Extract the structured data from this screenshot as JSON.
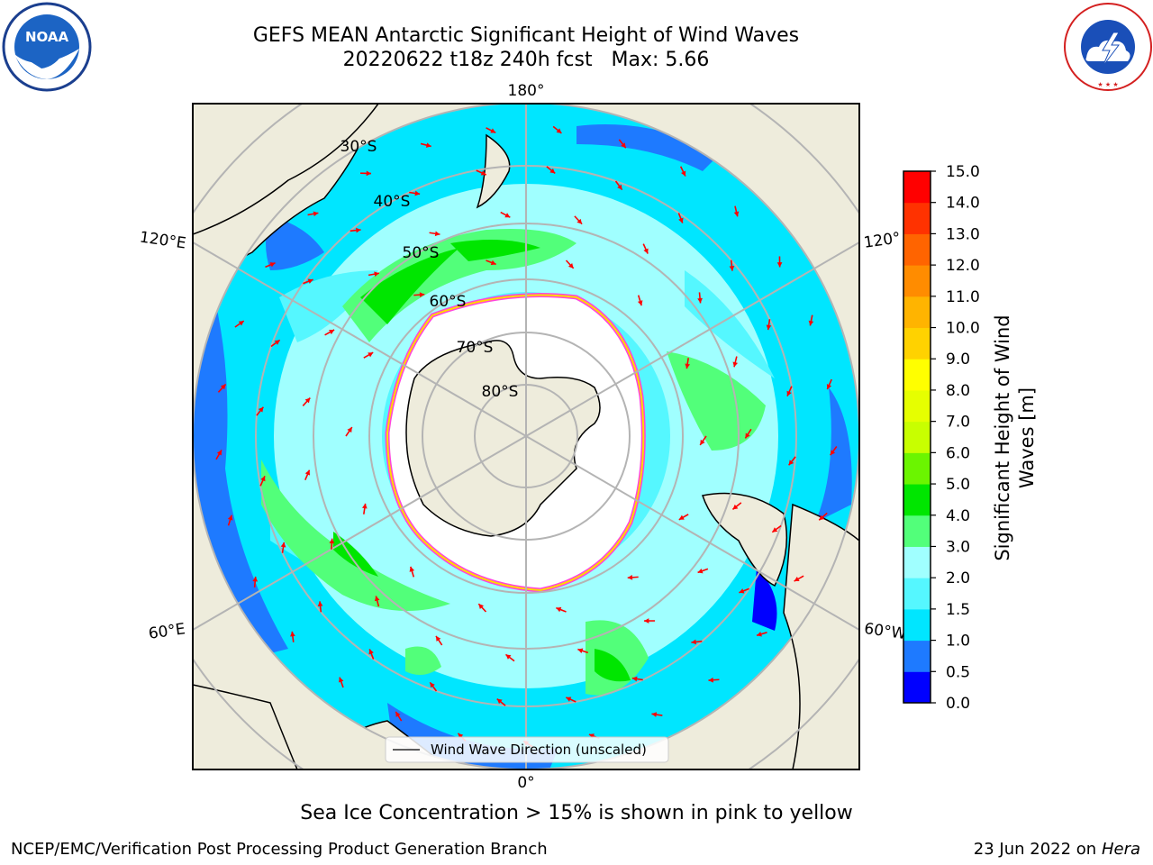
{
  "header": {
    "title_line1": "GEFS MEAN Antarctic Significant Height of Wind Waves",
    "title_line2": "20220622 t18z 240h fcst   Max: 5.66"
  },
  "logos": {
    "left": "NOAA",
    "right": "NATIONAL WEATHER SERVICE"
  },
  "map": {
    "projection": "south-polar-stereographic",
    "longitude_labels": {
      "top": "180°",
      "bottom": "0°",
      "upper_left": "120°E",
      "lower_left": "60°E",
      "upper_right": "120°",
      "lower_right": "60°W"
    },
    "latitude_labels": [
      "30°S",
      "40°S",
      "50°S",
      "60°S",
      "70°S",
      "80°S"
    ],
    "legend": "Wind Wave Direction (unscaled)",
    "colors": {
      "land": "#eeecdc",
      "sea_ice_open": "#ffffff",
      "ice_edge_pink": "#ff44dd",
      "ice_edge_yellow": "#ffd700",
      "arrows": "#ff0000",
      "gridlines": "#b4b4b4"
    }
  },
  "colorbar": {
    "label": "Significant Height of Wind Waves [m]",
    "ticks": [
      "0.0",
      "0.5",
      "1.0",
      "1.5",
      "2.0",
      "3.0",
      "4.0",
      "5.0",
      "6.0",
      "7.0",
      "8.0",
      "9.0",
      "10.0",
      "11.0",
      "12.0",
      "13.0",
      "14.0",
      "15.0"
    ],
    "colors": [
      "#0000ff",
      "#1e7aff",
      "#00e6ff",
      "#55f7ff",
      "#a0ffff",
      "#52ff7a",
      "#00e600",
      "#6bf500",
      "#c8ff00",
      "#e6ff00",
      "#ffff00",
      "#ffd200",
      "#ffb400",
      "#ff8c00",
      "#ff6400",
      "#ff3200",
      "#ff0000"
    ]
  },
  "notes": {
    "sea_ice": "Sea Ice Concentration > 15% is shown in pink to yellow"
  },
  "footer": {
    "left": "NCEP/EMC/Verification Post Processing Product Generation Branch",
    "right_date": "23 Jun 2022 on",
    "right_system": "Hera"
  }
}
